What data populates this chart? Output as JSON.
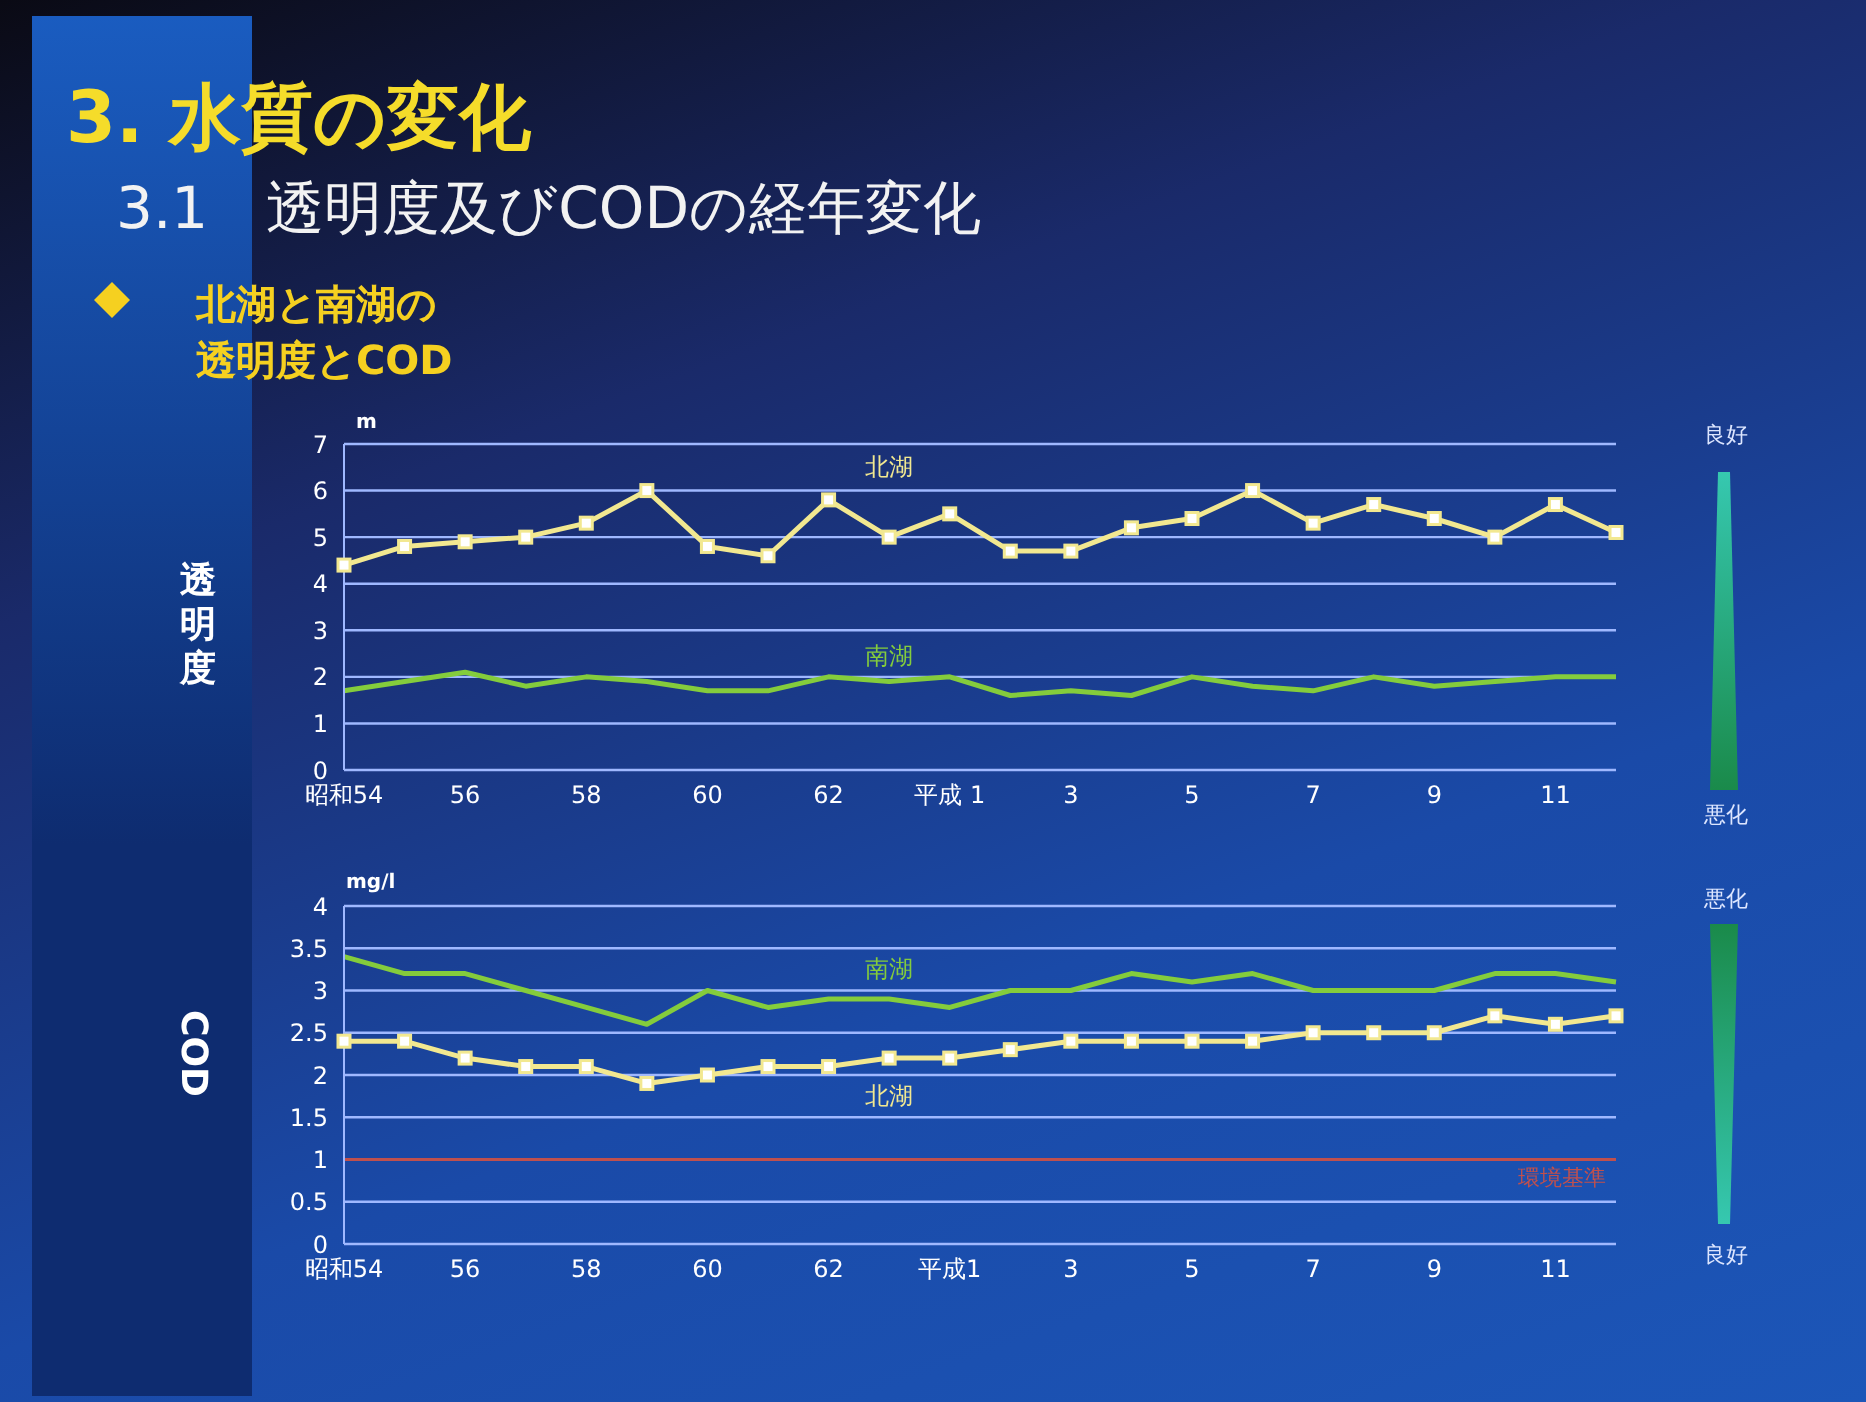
{
  "chart_data": [
    {
      "type": "line",
      "title": "3.  水質の変化",
      "subtitle": "3.1　透明度及びCODの経年変化",
      "ylabel": "透明度",
      "annotations": [
        "北湖と南湖の透明度とCOD",
        "m",
        "良好",
        "悪化"
      ],
      "categories": [
        "昭和54",
        null,
        "56",
        null,
        "58",
        null,
        "60",
        null,
        "62",
        null,
        "平成 1",
        null,
        "3",
        null,
        "5",
        null,
        "7",
        null,
        "9",
        null,
        "11",
        null
      ],
      "series": [
        {
          "name": "北湖",
          "color": "#f2e890",
          "marker": "square",
          "values": [
            4.4,
            4.8,
            4.9,
            5.0,
            5.3,
            6.0,
            4.8,
            4.6,
            5.8,
            5.0,
            5.5,
            4.7,
            4.7,
            5.2,
            5.4,
            6.0,
            5.3,
            5.7,
            5.4,
            5.0,
            5.7,
            5.1
          ]
        },
        {
          "name": "南湖",
          "color": "#84cc3c",
          "marker": "none",
          "values": [
            1.7,
            1.9,
            2.1,
            1.8,
            2.0,
            1.9,
            1.7,
            1.7,
            2.0,
            1.9,
            2.0,
            1.6,
            1.7,
            1.6,
            2.0,
            1.8,
            1.7,
            2.0,
            1.8,
            1.9,
            2.0,
            2.0
          ]
        }
      ],
      "ylim": [
        0,
        7
      ],
      "yticks": [
        0,
        1,
        2,
        3,
        4,
        5,
        6,
        7
      ],
      "grid": "y",
      "legend": false
    },
    {
      "type": "line",
      "ylabel": "COD",
      "annotations": [
        "mg/l",
        "悪化",
        "良好"
      ],
      "categories": [
        "昭和54",
        null,
        "56",
        null,
        "58",
        null,
        "60",
        null,
        "62",
        null,
        "平成1",
        null,
        "3",
        null,
        "5",
        null,
        "7",
        null,
        "9",
        null,
        "11",
        null
      ],
      "series": [
        {
          "name": "南湖",
          "color": "#84cc3c",
          "marker": "none",
          "values": [
            3.4,
            3.2,
            3.2,
            3.0,
            2.8,
            2.6,
            3.0,
            2.8,
            2.9,
            2.9,
            2.8,
            3.0,
            3.0,
            3.2,
            3.1,
            3.2,
            3.0,
            3.0,
            3.0,
            3.2,
            3.2,
            3.1
          ]
        },
        {
          "name": "北湖",
          "color": "#f2e890",
          "marker": "square",
          "values": [
            2.4,
            2.4,
            2.2,
            2.1,
            2.1,
            1.9,
            2.0,
            2.1,
            2.1,
            2.2,
            2.2,
            2.3,
            2.4,
            2.4,
            2.4,
            2.4,
            2.5,
            2.5,
            2.5,
            2.7,
            2.6,
            2.7
          ]
        }
      ],
      "ylim": [
        0,
        4
      ],
      "yticks": [
        0,
        0.5,
        1,
        1.5,
        2,
        2.5,
        3,
        3.5,
        4
      ],
      "grid": "y",
      "legend": false,
      "ref_lines": [
        {
          "axis": "y",
          "value": 1,
          "label": "環境基準",
          "color": "#c0504d"
        }
      ]
    }
  ]
}
